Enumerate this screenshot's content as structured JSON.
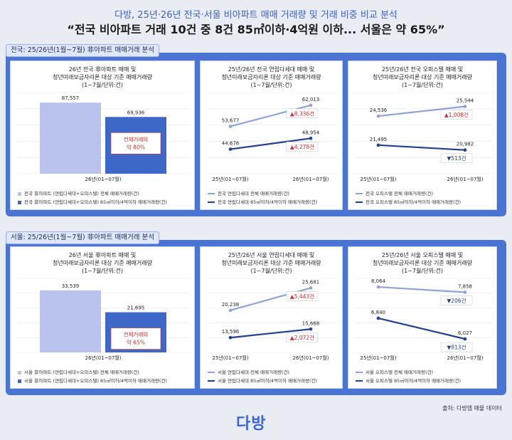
{
  "header": {
    "subtitle": "다방, 25년·26년 전국·서울 비아파트 매매 거래량 및 거래 비중 비교 분석",
    "title": "“전국 비아파트 거래 10건 중 8건 85㎡이하·4억원 이하... 서울은 약 65%”"
  },
  "sections": [
    {
      "tag": "전국: 25/26년(1월~7월) 非아파트 매매거래 분석"
    },
    {
      "tag": "서울: 25/26년(1월~7월) 非아파트 매매거래 분석"
    }
  ],
  "footer": {
    "source": "출처: 다방앱 매물 데이터",
    "logo": "다방"
  },
  "colors": {
    "accent": "#4a74d4",
    "bar_light": "#b9c3ee",
    "bar_dark": "#3d68c8",
    "line_light": "#8ea3d8",
    "line_dark": "#1f3f8f",
    "up": "#d62a2a",
    "down": "#1f3f8f"
  },
  "chart_data": [
    {
      "type": "bar",
      "title": "26년 전국 非아파트 매매 및\n청년미래보금자리론 대상 기준 매매거래량\n(1~7월/단위:건)",
      "categories": [
        "26년(01~07월)"
      ],
      "series": [
        {
          "name": "전국 非아파트 (연립다세대+오피스텔) 전체 매매거래량(건)",
          "values": [
            87557
          ]
        },
        {
          "name": "전국 非아파트 (연립다세대+오피스텔) 85㎡이하/4억이하 매매거래량(건)",
          "values": [
            69936
          ]
        }
      ],
      "value_labels": [
        "87,557",
        "69,936"
      ],
      "annotation": "전체거래의\n약 80%",
      "ylim": [
        0,
        100000
      ]
    },
    {
      "type": "line",
      "title": "25년/26년 전국 연립다세대 매매 및\n청년미래보금자리론 대상 기준 매매거래량\n(1~7월/단위:건)",
      "categories": [
        "25년(01~07월)",
        "26년(01~07월)"
      ],
      "series": [
        {
          "name": "전국 연립다세대 전체 매매거래량(건)",
          "values": [
            53677,
            62013
          ],
          "labels": [
            "53,677",
            "62,013"
          ],
          "delta": "▲8,336건",
          "dir": "up"
        },
        {
          "name": "전국 연립다세대 85㎡이하/4억이하 매매거래량(건)",
          "values": [
            44676,
            48954
          ],
          "labels": [
            "44,676",
            "48,954"
          ],
          "delta": "▲4,278건",
          "dir": "up"
        }
      ],
      "ylim": [
        35000,
        67000
      ]
    },
    {
      "type": "line",
      "title": "25년/26년 전국 오피스텔 매매 및\n청년미래보금자리론 대상 기준 매매거래량\n(1~7월/단위:건)",
      "categories": [
        "25년(01~07월)",
        "26년(01~07월)"
      ],
      "series": [
        {
          "name": "전국 오피스텔 전체 매매거래량(건)",
          "values": [
            24536,
            25544
          ],
          "labels": [
            "24,536",
            "25,544"
          ],
          "delta": "▲1,008건",
          "dir": "up"
        },
        {
          "name": "전국 오피스텔 85㎡이하/4억이하 매매거래량(건)",
          "values": [
            21495,
            20982
          ],
          "labels": [
            "21,495",
            "20,982"
          ],
          "delta": "▼513건",
          "dir": "down"
        }
      ],
      "ylim": [
        18500,
        27000
      ]
    },
    {
      "type": "bar",
      "title": "26년 서울 非아파트 매매 및\n청년미래보금자리론 대상 기준 매매거래량\n(1~7월/단위:건)",
      "categories": [
        "26년(01~07월)"
      ],
      "series": [
        {
          "name": "서울 非아파트 (연립다세대+오피스텔) 전체 매매거래량(건)",
          "values": [
            33539
          ]
        },
        {
          "name": "서울 非아파트 (연립다세대+오피스텔) 85㎡이하/4억이하 매매거래량(건)",
          "values": [
            21695
          ]
        }
      ],
      "value_labels": [
        "33,539",
        "21,695"
      ],
      "annotation": "전체거래의\n약 65%",
      "ylim": [
        0,
        40000
      ]
    },
    {
      "type": "line",
      "title": "25년/26년 서울 연립다세대 매매 및\n청년미래보금자리론 대상 기준 매매거래량\n(1~7월/단위:건)",
      "categories": [
        "25년(01~07월)",
        "26년(01~07월)"
      ],
      "series": [
        {
          "name": "서울 연립다세대 전체 매매거래량(건)",
          "values": [
            20238,
            25681
          ],
          "labels": [
            "20,238",
            "25,681"
          ],
          "delta": "▲5,443건",
          "dir": "up"
        },
        {
          "name": "서울 연립다세대 85㎡이하/4억이하 매매거래량(건)",
          "values": [
            13596,
            15668
          ],
          "labels": [
            "13,596",
            "15,668"
          ],
          "delta": "▲2,072건",
          "dir": "up"
        }
      ],
      "ylim": [
        10000,
        28000
      ]
    },
    {
      "type": "line",
      "title": "25년/26년 서울 오피스텔 매매 및\n청년미래보금자리론 대상 기준 매매거래량\n(1~7월/단위:건)",
      "categories": [
        "25년(01~07월)",
        "26년(01~07월)"
      ],
      "series": [
        {
          "name": "서울 오피스텔 전체 매매거래량(건)",
          "values": [
            8064,
            7858
          ],
          "labels": [
            "8,064",
            "7,858"
          ],
          "delta": "▼206건",
          "dir": "down"
        },
        {
          "name": "서울 오피스텔 85㎡이하/4억이하 매매거래량(건)",
          "values": [
            6840,
            6027
          ],
          "labels": [
            "6,840",
            "6,027"
          ],
          "delta": "▼813건",
          "dir": "down"
        }
      ],
      "ylim": [
        5500,
        8400
      ]
    }
  ]
}
